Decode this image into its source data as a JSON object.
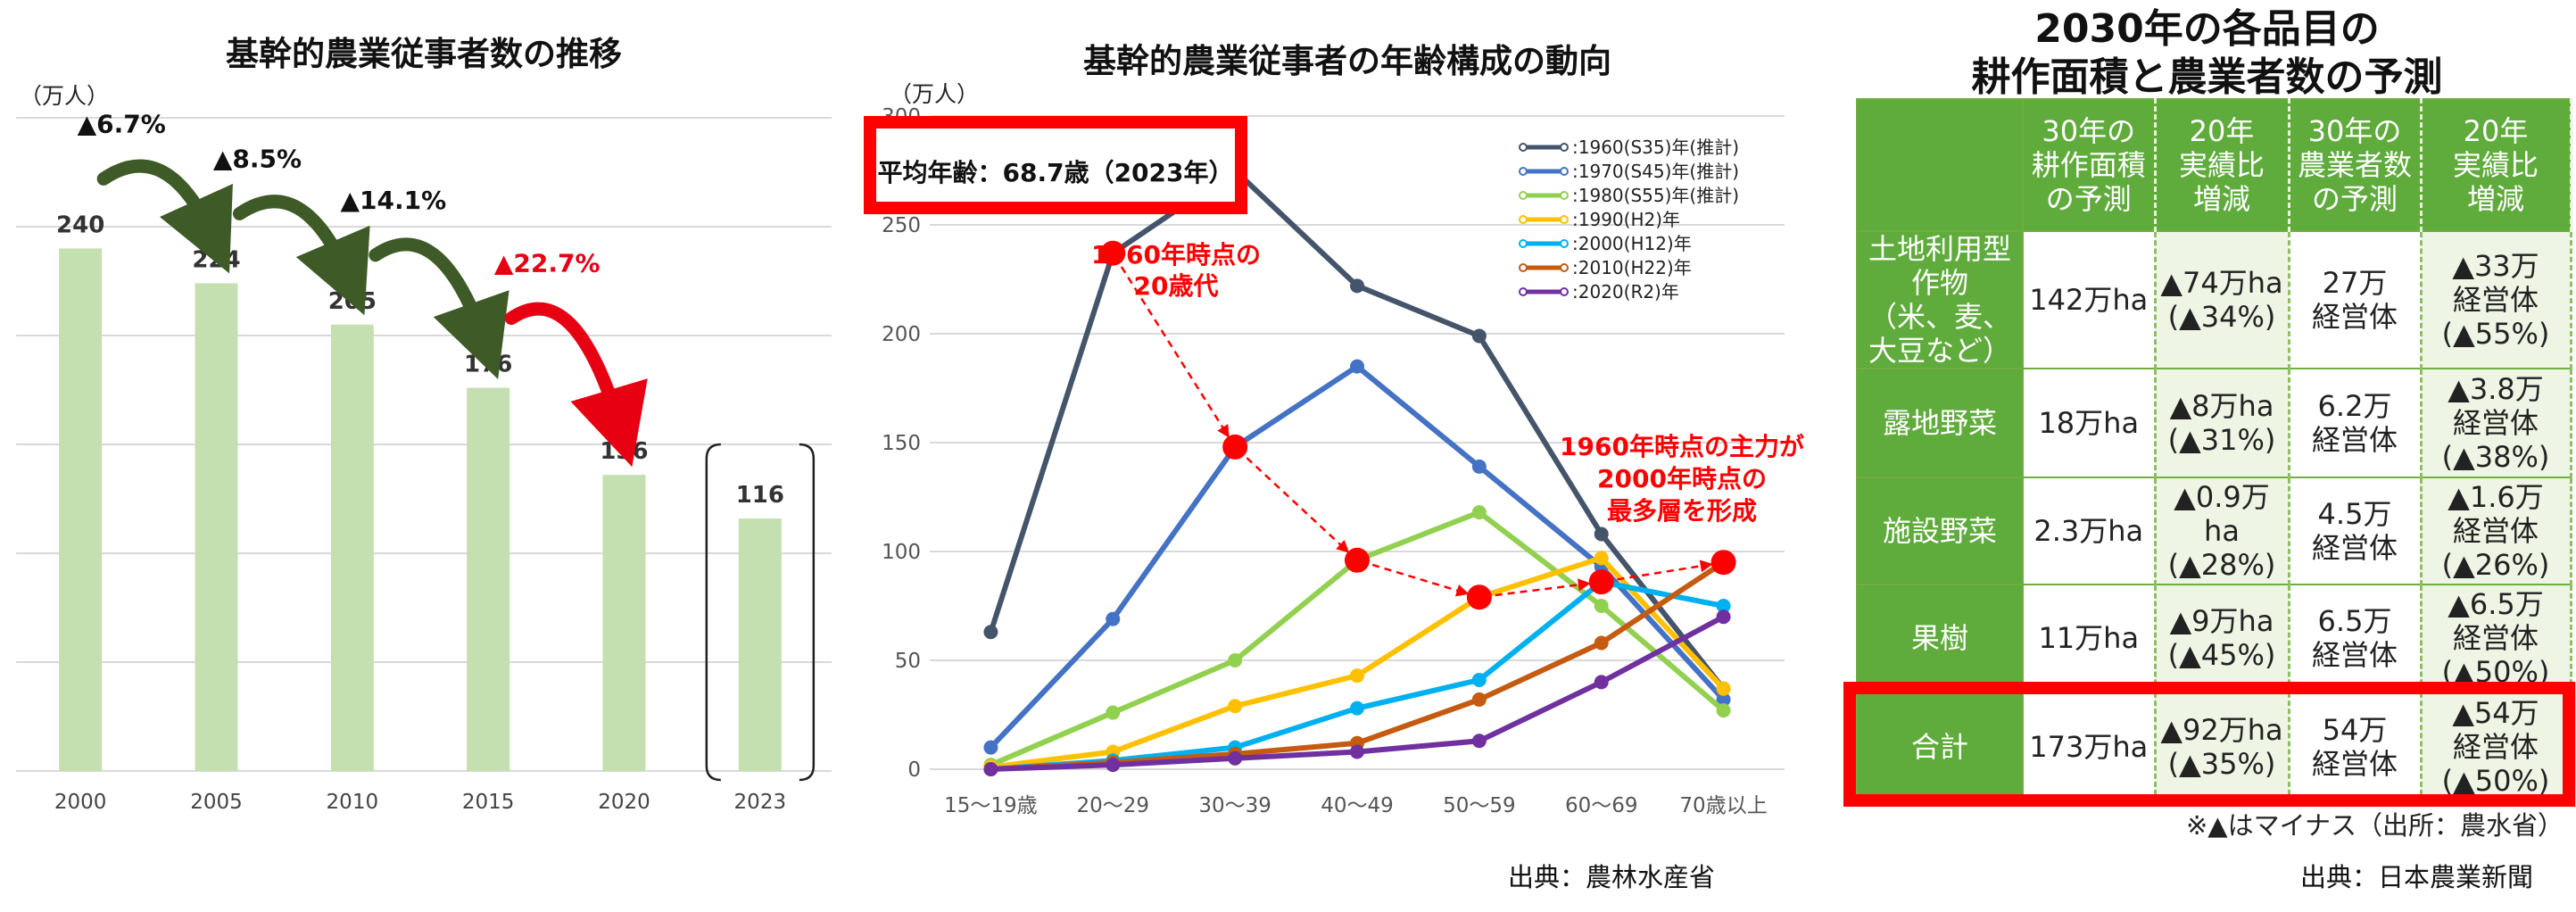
{
  "colors": {
    "bar": "#c4dfb0",
    "arrow_dark": "#3d5a27",
    "arrow_red": "#e60012",
    "accent_red": "#ff0000",
    "table_green": "#5fab3c"
  },
  "panel1": {
    "title": "基幹的農業従事者数の推移",
    "unit": "（万人）",
    "changes": [
      "▲6.7%",
      "▲8.5%",
      "▲14.1%",
      "▲22.7%"
    ],
    "chart_data": {
      "type": "bar",
      "categories": [
        "2000",
        "2005",
        "2010",
        "2015",
        "2020",
        "2023"
      ],
      "values": [
        240,
        224,
        205,
        176,
        136,
        116
      ],
      "ylim": [
        0,
        300
      ],
      "grid": true
    }
  },
  "panel2": {
    "title": "基幹的農業従事者の年齢構成の動向",
    "unit": "（万人）",
    "avg_age": "平均年齢：68.7歳（2023年）",
    "annotation1": [
      "1960年時点の",
      "20歳代"
    ],
    "annotation2": [
      "1960年時点の主力が",
      "2000年時点の",
      "最多層を形成"
    ],
    "source": "出典：農林水産省",
    "chart_data": {
      "type": "line",
      "x": [
        "15～19歳",
        "20～29",
        "30～39",
        "40～49",
        "50～59",
        "60～69",
        "70歳以上"
      ],
      "yticks": [
        "0",
        "50",
        "100",
        "150",
        "200",
        "250",
        "300"
      ],
      "ylim": [
        0,
        300
      ],
      "legend_position": "top-right",
      "series": [
        {
          "name": "1960(S35)年(推計)",
          "color": "#44546a",
          "values": [
            63,
            237,
            275,
            222,
            199,
            108,
            37
          ]
        },
        {
          "name": "1970(S45)年(推計)",
          "color": "#4472c4",
          "values": [
            10,
            69,
            148,
            185,
            139,
            93,
            32
          ]
        },
        {
          "name": "1980(S55)年(推計)",
          "color": "#92d050",
          "values": [
            2,
            26,
            50,
            96,
            118,
            75,
            27
          ]
        },
        {
          "name": "1990(H2)年",
          "color": "#ffc000",
          "values": [
            1,
            8,
            29,
            43,
            79,
            97,
            37
          ]
        },
        {
          "name": "2000(H12)年",
          "color": "#00b0f0",
          "values": [
            0,
            4,
            10,
            28,
            41,
            86,
            75
          ]
        },
        {
          "name": "2010(H22)年",
          "color": "#c55a11",
          "values": [
            0,
            3,
            7,
            12,
            32,
            58,
            95
          ]
        },
        {
          "name": "2020(R2)年",
          "color": "#7030a0",
          "values": [
            0,
            2,
            5,
            8,
            13,
            40,
            70
          ]
        }
      ],
      "highlight_points": [
        [
          1,
          237
        ],
        [
          2,
          148
        ],
        [
          3,
          96
        ],
        [
          4,
          79
        ],
        [
          5,
          86
        ],
        [
          6,
          95
        ]
      ]
    }
  },
  "panel3": {
    "title_line1": "2030年の各品目の",
    "title_line2": "耕作面積と農業者数の予測",
    "headers": [
      [
        "30年の",
        "耕作面積",
        "の予測"
      ],
      [
        "20年",
        "実績比",
        "増減"
      ],
      [
        "30年の",
        "農業者数",
        "の予測"
      ],
      [
        "20年",
        "実績比",
        "増減"
      ]
    ],
    "rows": [
      {
        "cat": [
          "土地利用型",
          "作物",
          "（米、麦、",
          "大豆など）"
        ],
        "area": "142万ha",
        "area_ch": [
          "▲74万ha",
          "(▲34%)"
        ],
        "farmers": [
          "27万",
          "経営体"
        ],
        "farmers_ch": [
          "▲33万",
          "経営体",
          "(▲55%)"
        ]
      },
      {
        "cat": [
          "露地野菜"
        ],
        "area": "18万ha",
        "area_ch": [
          "▲8万ha",
          "(▲31%)"
        ],
        "farmers": [
          "6.2万",
          "経営体"
        ],
        "farmers_ch": [
          "▲3.8万",
          "経営体",
          "(▲38%)"
        ]
      },
      {
        "cat": [
          "施設野菜"
        ],
        "area": "2.3万ha",
        "area_ch": [
          "▲0.9万ha",
          "(▲28%)"
        ],
        "farmers": [
          "4.5万",
          "経営体"
        ],
        "farmers_ch": [
          "▲1.6万",
          "経営体",
          "(▲26%)"
        ]
      },
      {
        "cat": [
          "果樹"
        ],
        "area": "11万ha",
        "area_ch": [
          "▲9万ha",
          "(▲45%)"
        ],
        "farmers": [
          "6.5万",
          "経営体"
        ],
        "farmers_ch": [
          "▲6.5万",
          "経営体",
          "(▲50%)"
        ]
      },
      {
        "cat": [
          "合計"
        ],
        "area": "173万ha",
        "area_ch": [
          "▲92万ha",
          "(▲35%)"
        ],
        "farmers": [
          "54万",
          "経営体"
        ],
        "farmers_ch": [
          "▲54万",
          "経営体",
          "(▲50%)"
        ]
      }
    ],
    "note": "※▲はマイナス（出所：農水省）",
    "source": "出典：日本農業新聞"
  }
}
